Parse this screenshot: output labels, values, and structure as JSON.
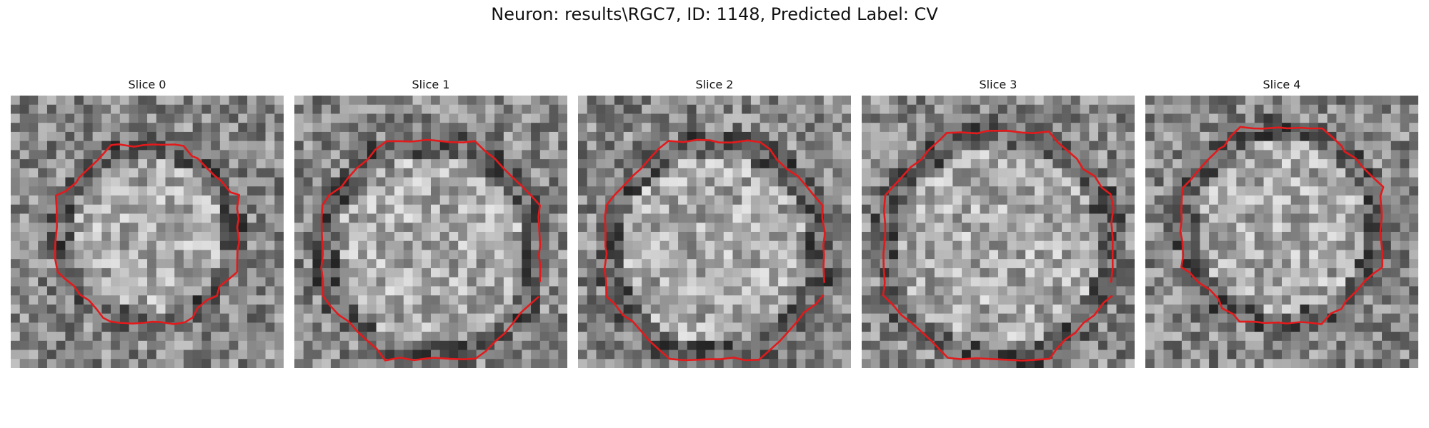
{
  "figure": {
    "title": "Neuron: results\\RGC7, ID: 1148, Predicted Label: CV"
  },
  "panels": [
    {
      "title": "Slice 0"
    },
    {
      "title": "Slice 1"
    },
    {
      "title": "Slice 2"
    },
    {
      "title": "Slice 3"
    },
    {
      "title": "Slice 4"
    }
  ],
  "colors": {
    "contour": "#e31a1c",
    "background": "#ffffff"
  }
}
